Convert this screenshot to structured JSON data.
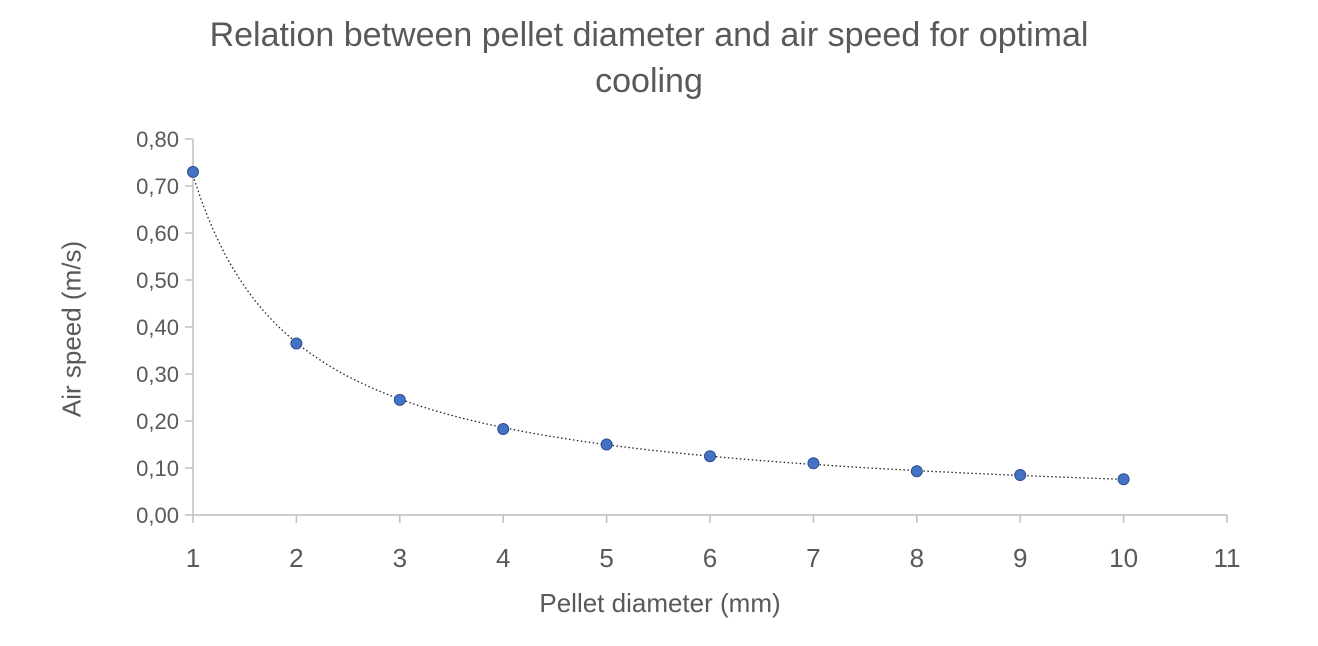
{
  "chart_data": {
    "type": "scatter",
    "title": "Relation between pellet diameter and air speed for optimal cooling",
    "xlabel": "Pellet diameter (mm)",
    "ylabel": "Air speed (m/s)",
    "xlim": [
      1,
      11
    ],
    "ylim": [
      0,
      0.8
    ],
    "x_ticks": [
      "1",
      "2",
      "3",
      "4",
      "5",
      "6",
      "7",
      "8",
      "9",
      "10",
      "11"
    ],
    "y_ticks": [
      "0,00",
      "0,10",
      "0,20",
      "0,30",
      "0,40",
      "0,50",
      "0,60",
      "0,70",
      "0,80"
    ],
    "grid": false,
    "legend": "none",
    "trendline": "power (dotted)",
    "marker_color": "#4472c4",
    "marker_edge_color": "#2f4f8f",
    "series": [
      {
        "x": [
          1,
          2,
          3,
          4,
          5,
          6,
          7,
          8,
          9,
          10
        ],
        "values": [
          0.73,
          0.365,
          0.245,
          0.183,
          0.15,
          0.125,
          0.11,
          0.093,
          0.085,
          0.076
        ]
      }
    ]
  }
}
